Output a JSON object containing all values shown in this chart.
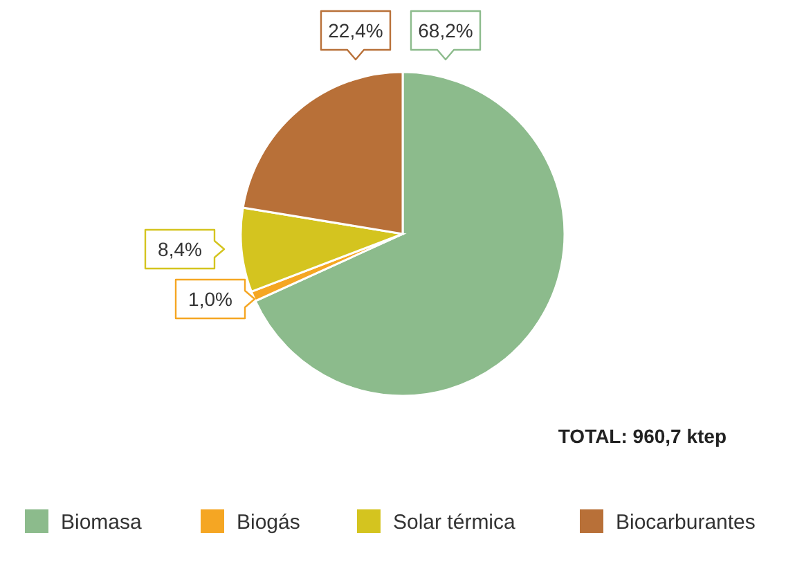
{
  "chart_data": {
    "type": "pie",
    "categories": [
      "Biomasa",
      "Biogás",
      "Solar térmica",
      "Biocarburantes"
    ],
    "values": [
      68.2,
      1.0,
      8.4,
      22.4
    ],
    "colors": [
      "#8cbb8c",
      "#f5a623",
      "#d4c41f",
      "#b87038"
    ],
    "value_labels": [
      "68,2%",
      "1,0%",
      "8,4%",
      "22,4%"
    ],
    "annotations": [
      "TOTAL: 960,7 ktep"
    ],
    "legend": "bottom"
  }
}
